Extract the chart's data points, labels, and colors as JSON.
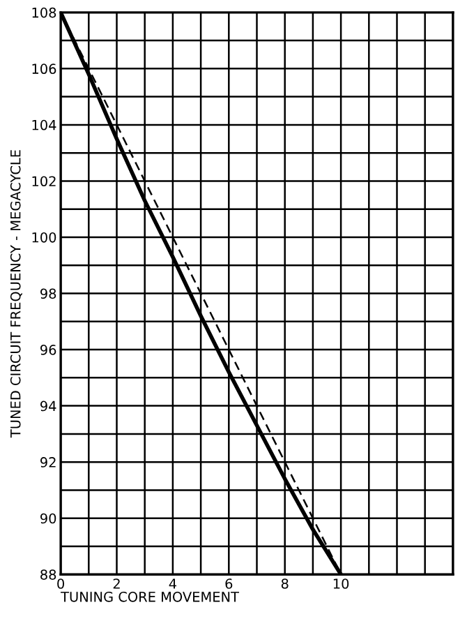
{
  "chart_data": {
    "type": "line",
    "xlabel": "TUNING CORE MOVEMENT",
    "ylabel": "TUNED CIRCUIT FREQUENCY - MEGACYCLE",
    "x": [
      0,
      1,
      2,
      3,
      4,
      5,
      6,
      7,
      8,
      9,
      10
    ],
    "series": [
      {
        "color": "#000000",
        "line_style": "solid",
        "values": [
          108,
          105.8,
          103.5,
          101.3,
          99.3,
          97.2,
          95.2,
          93.3,
          91.4,
          89.6,
          88
        ]
      },
      {
        "color": "#000000",
        "line_style": "dashed",
        "values": [
          108,
          106,
          104,
          102,
          100,
          98,
          96,
          94,
          92,
          90,
          88
        ]
      }
    ],
    "xlim": [
      0,
      14
    ],
    "xticks": [
      0,
      {
        "value": 1,
        "label": null
      },
      2,
      {
        "value": 3,
        "label": null
      },
      4,
      {
        "value": 5,
        "label": null
      },
      6,
      {
        "value": 7,
        "label": null
      },
      8,
      {
        "value": 9,
        "label": null
      },
      10,
      {
        "value": 11,
        "label": null
      },
      {
        "value": 12,
        "label": null
      },
      {
        "value": 13,
        "label": null
      },
      {
        "value": 14,
        "label": null
      }
    ],
    "ylim": [
      88,
      108
    ],
    "yticks": [
      88,
      {
        "value": 89,
        "label": null
      },
      90,
      {
        "value": 91,
        "label": null
      },
      92,
      {
        "value": 93,
        "label": null
      },
      94,
      {
        "value": 95,
        "label": null
      },
      96,
      {
        "value": 97,
        "label": null
      },
      98,
      {
        "value": 99,
        "label": null
      },
      100,
      {
        "value": 101,
        "label": null
      },
      102,
      {
        "value": 103,
        "label": null
      },
      104,
      {
        "value": 105,
        "label": null
      },
      106,
      {
        "value": 107,
        "label": null
      },
      108
    ],
    "grid": true
  }
}
